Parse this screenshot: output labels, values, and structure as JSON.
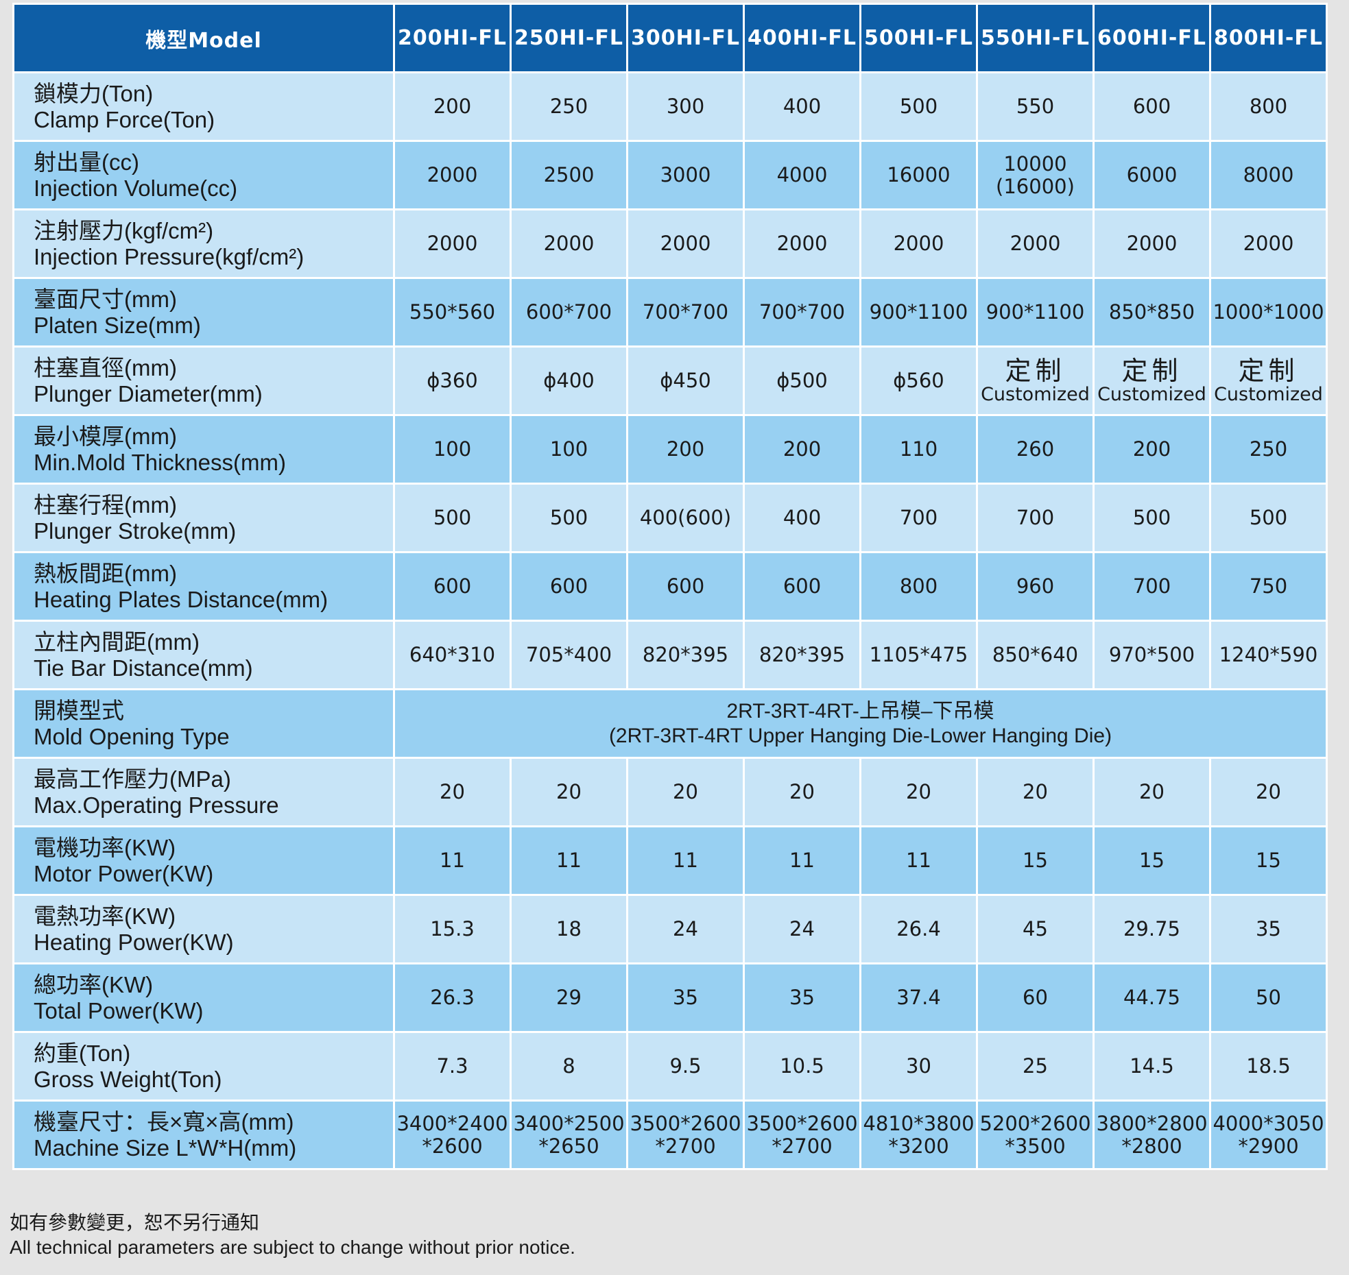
{
  "header": {
    "model_label": "機型Model",
    "models": [
      "200HI-FL",
      "250HI-FL",
      "300HI-FL",
      "400HI-FL",
      "500HI-FL",
      "550HI-FL",
      "600HI-FL",
      "800HI-FL"
    ]
  },
  "rows": [
    {
      "zh": "鎖模力(Ton)",
      "en": "Clamp Force(Ton)",
      "values": [
        "200",
        "250",
        "300",
        "400",
        "500",
        "550",
        "600",
        "800"
      ]
    },
    {
      "zh": "射出量(cc)",
      "en": "Injection Volume(cc)",
      "values": [
        "2000",
        "2500",
        "3000",
        "4000",
        "16000",
        [
          "10000",
          "(16000)"
        ],
        "6000",
        "8000"
      ]
    },
    {
      "zh": "注射壓力(kgf/cm²)",
      "en": "Injection Pressure(kgf/cm²)",
      "values": [
        "2000",
        "2000",
        "2000",
        "2000",
        "2000",
        "2000",
        "2000",
        "2000"
      ]
    },
    {
      "zh": "臺面尺寸(mm)",
      "en": "Platen Size(mm)",
      "values": [
        "550*560",
        "600*700",
        "700*700",
        "700*700",
        "900*1100",
        "900*1100",
        "850*850",
        "1000*1000"
      ]
    },
    {
      "zh": "柱塞直徑(mm)",
      "en": "Plunger Diameter(mm)",
      "values": [
        "ϕ360",
        "ϕ400",
        "ϕ450",
        "ϕ500",
        "ϕ560",
        {
          "zh": "定制",
          "en": "Customized"
        },
        {
          "zh": "定制",
          "en": "Customized"
        },
        {
          "zh": "定制",
          "en": "Customized"
        }
      ]
    },
    {
      "zh": "最小模厚(mm)",
      "en": "Min.Mold Thickness(mm)",
      "values": [
        "100",
        "100",
        "200",
        "200",
        "110",
        "260",
        "200",
        "250"
      ]
    },
    {
      "zh": "柱塞行程(mm)",
      "en": "Plunger Stroke(mm)",
      "values": [
        "500",
        "500",
        "400(600)",
        "400",
        "700",
        "700",
        "500",
        "500"
      ]
    },
    {
      "zh": "熱板間距(mm)",
      "en": "Heating Plates Distance(mm)",
      "values": [
        "600",
        "600",
        "600",
        "600",
        "800",
        "960",
        "700",
        "750"
      ]
    },
    {
      "zh": "立柱內間距(mm)",
      "en": "Tie Bar Distance(mm)",
      "values": [
        "640*310",
        "705*400",
        "820*395",
        "820*395",
        "1105*475",
        "850*640",
        "970*500",
        "1240*590"
      ]
    },
    {
      "zh": "開模型式",
      "en": "Mold Opening Type",
      "span": [
        "2RT-3RT-4RT-上吊模–下吊模",
        "(2RT-3RT-4RT Upper Hanging Die-Lower Hanging Die)"
      ]
    },
    {
      "zh": "最高工作壓力(MPa)",
      "en": "Max.Operating Pressure",
      "values": [
        "20",
        "20",
        "20",
        "20",
        "20",
        "20",
        "20",
        "20"
      ]
    },
    {
      "zh": "電機功率(KW)",
      "en": "Motor Power(KW)",
      "values": [
        "11",
        "11",
        "11",
        "11",
        "11",
        "15",
        "15",
        "15"
      ]
    },
    {
      "zh": "電熱功率(KW)",
      "en": "Heating Power(KW)",
      "values": [
        "15.3",
        "18",
        "24",
        "24",
        "26.4",
        "45",
        "29.75",
        "35"
      ]
    },
    {
      "zh": "總功率(KW)",
      "en": "Total Power(KW)",
      "values": [
        "26.3",
        "29",
        "35",
        "35",
        "37.4",
        "60",
        "44.75",
        "50"
      ]
    },
    {
      "zh": "約重(Ton)",
      "en": "Gross Weight(Ton)",
      "values": [
        "7.3",
        "8",
        "9.5",
        "10.5",
        "30",
        "25",
        "14.5",
        "18.5"
      ]
    },
    {
      "zh": "機臺尺寸：長×寬×高(mm)",
      "en": "Machine Size L*W*H(mm)",
      "values": [
        [
          "3400*2400",
          "*2600"
        ],
        [
          "3400*2500",
          "*2650"
        ],
        [
          "3500*2600",
          "*2700"
        ],
        [
          "3500*2600",
          "*2700"
        ],
        [
          "4810*3800",
          "*3200"
        ],
        [
          "5200*2600",
          "*3500"
        ],
        [
          "3800*2800",
          "*2800"
        ],
        [
          "4000*3050",
          "*2900"
        ]
      ]
    }
  ],
  "footnote": {
    "zh": "如有參數變更，恕不另行通知",
    "en": "All technical parameters are subject to change without prior notice."
  },
  "colors": {
    "header": "#0e5ea6",
    "row_light": "#c7e4f7",
    "row_dark": "#98d0f2",
    "background": "#e4e4e4"
  }
}
